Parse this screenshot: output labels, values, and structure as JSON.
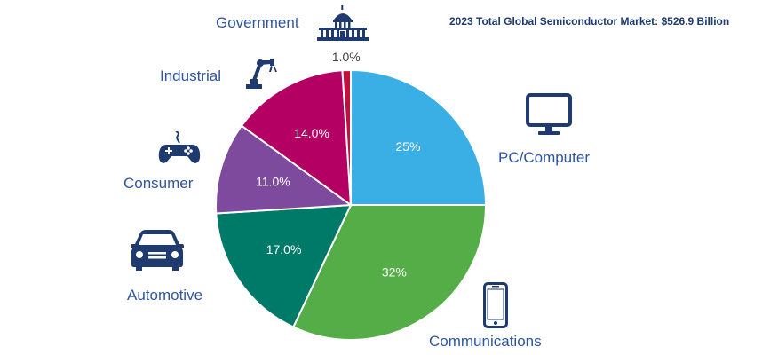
{
  "title": "2023 Total Global Semiconductor Market: $526.9 Billion",
  "chart_data": {
    "type": "pie",
    "title": "2023 Total Global Semiconductor Market: $526.9 Billion",
    "slices": [
      {
        "name": "PC/Computer",
        "value": 25,
        "label": "25%",
        "color": "#3aafe6",
        "icon": "computer-monitor-icon"
      },
      {
        "name": "Communications",
        "value": 32,
        "label": "32%",
        "color": "#55ad48",
        "icon": "smartphone-icon"
      },
      {
        "name": "Automotive",
        "value": 17,
        "label": "17.0%",
        "color": "#007a68",
        "icon": "car-icon"
      },
      {
        "name": "Consumer",
        "value": 11,
        "label": "11.0%",
        "color": "#7d4a9d",
        "icon": "game-controller-icon"
      },
      {
        "name": "Industrial",
        "value": 14,
        "label": "14.0%",
        "color": "#b30062",
        "icon": "robot-arm-icon"
      },
      {
        "name": "Government",
        "value": 1,
        "label": "1.0%",
        "color": "#c0103d",
        "icon": "capitol-building-icon"
      }
    ]
  },
  "colors": {
    "category_text": "#2e55a3",
    "icon": "#1f3a6f",
    "title": "#1f3a6f"
  }
}
